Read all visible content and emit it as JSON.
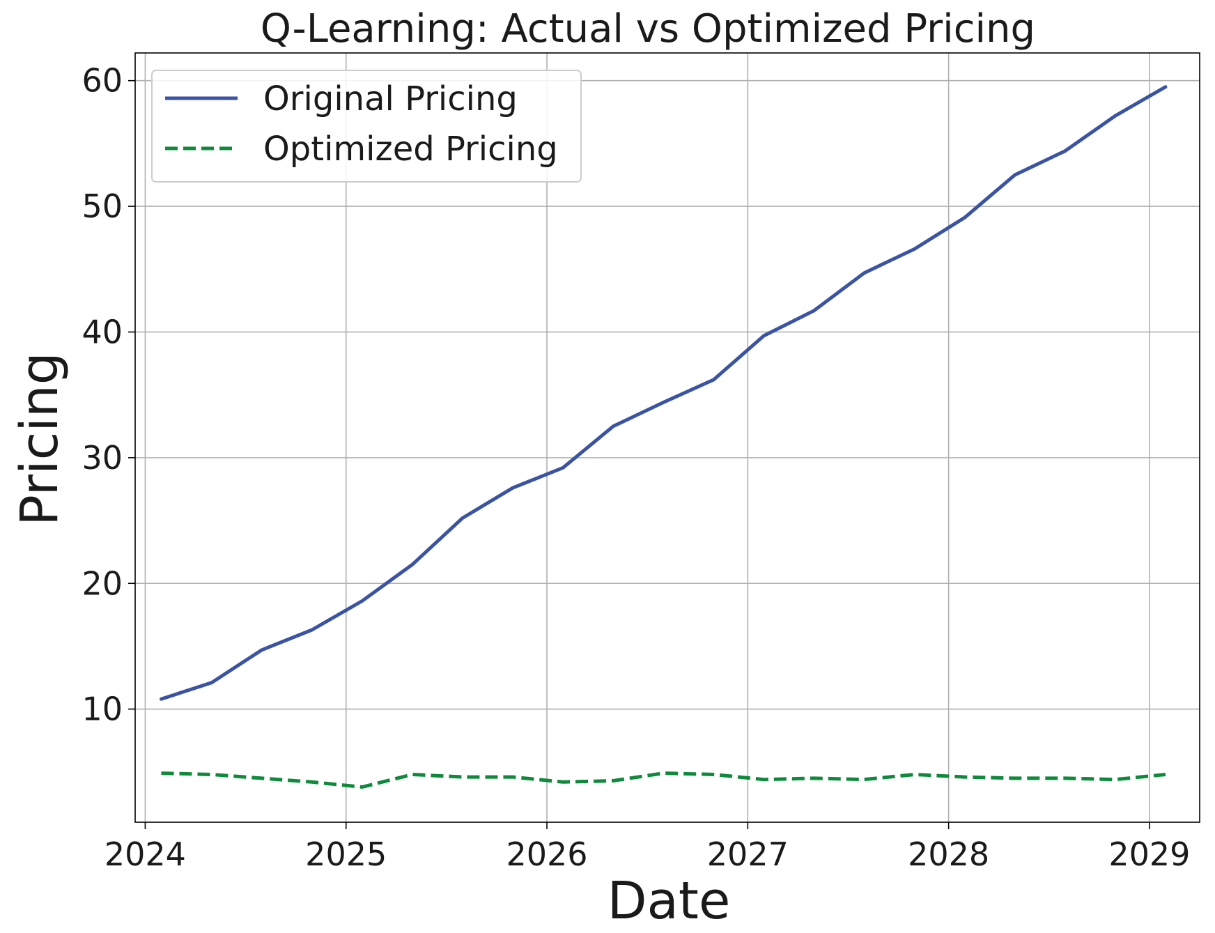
{
  "chart_data": {
    "type": "line",
    "title": "Q-Learning: Actual vs Optimized Pricing",
    "xlabel": "Date",
    "ylabel": "Pricing",
    "xlim": [
      2023.95,
      2029.25
    ],
    "ylim": [
      1.0,
      62.2
    ],
    "grid": true,
    "legend_position": "top-left",
    "x_ticks": [
      2024,
      2025,
      2026,
      2027,
      2028,
      2029
    ],
    "x_tick_labels": [
      "2024",
      "2025",
      "2026",
      "2027",
      "2028",
      "2029"
    ],
    "y_ticks": [
      10,
      20,
      30,
      40,
      50,
      60
    ],
    "y_tick_labels": [
      "10",
      "20",
      "30",
      "40",
      "50",
      "60"
    ],
    "x": [
      2024.08,
      2024.33,
      2024.58,
      2024.83,
      2025.08,
      2025.33,
      2025.58,
      2025.83,
      2026.08,
      2026.33,
      2026.58,
      2026.83,
      2027.08,
      2027.33,
      2027.58,
      2027.83,
      2028.08,
      2028.33,
      2028.58,
      2028.83,
      2029.08
    ],
    "series": [
      {
        "name": "Original Pricing",
        "color": "#3a53a4",
        "style": "solid",
        "values": [
          10.8,
          12.1,
          14.7,
          16.3,
          18.6,
          21.5,
          25.2,
          27.6,
          29.2,
          32.5,
          34.4,
          36.2,
          39.7,
          41.7,
          44.7,
          46.6,
          49.1,
          52.5,
          54.4,
          57.2,
          59.5
        ]
      },
      {
        "name": "Optimized Pricing",
        "color": "#0f8a3c",
        "style": "dashed",
        "values": [
          4.9,
          4.8,
          4.5,
          4.2,
          3.8,
          4.8,
          4.6,
          4.6,
          4.2,
          4.3,
          4.9,
          4.8,
          4.4,
          4.5,
          4.4,
          4.8,
          4.6,
          4.5,
          4.5,
          4.4,
          4.8
        ]
      }
    ]
  }
}
